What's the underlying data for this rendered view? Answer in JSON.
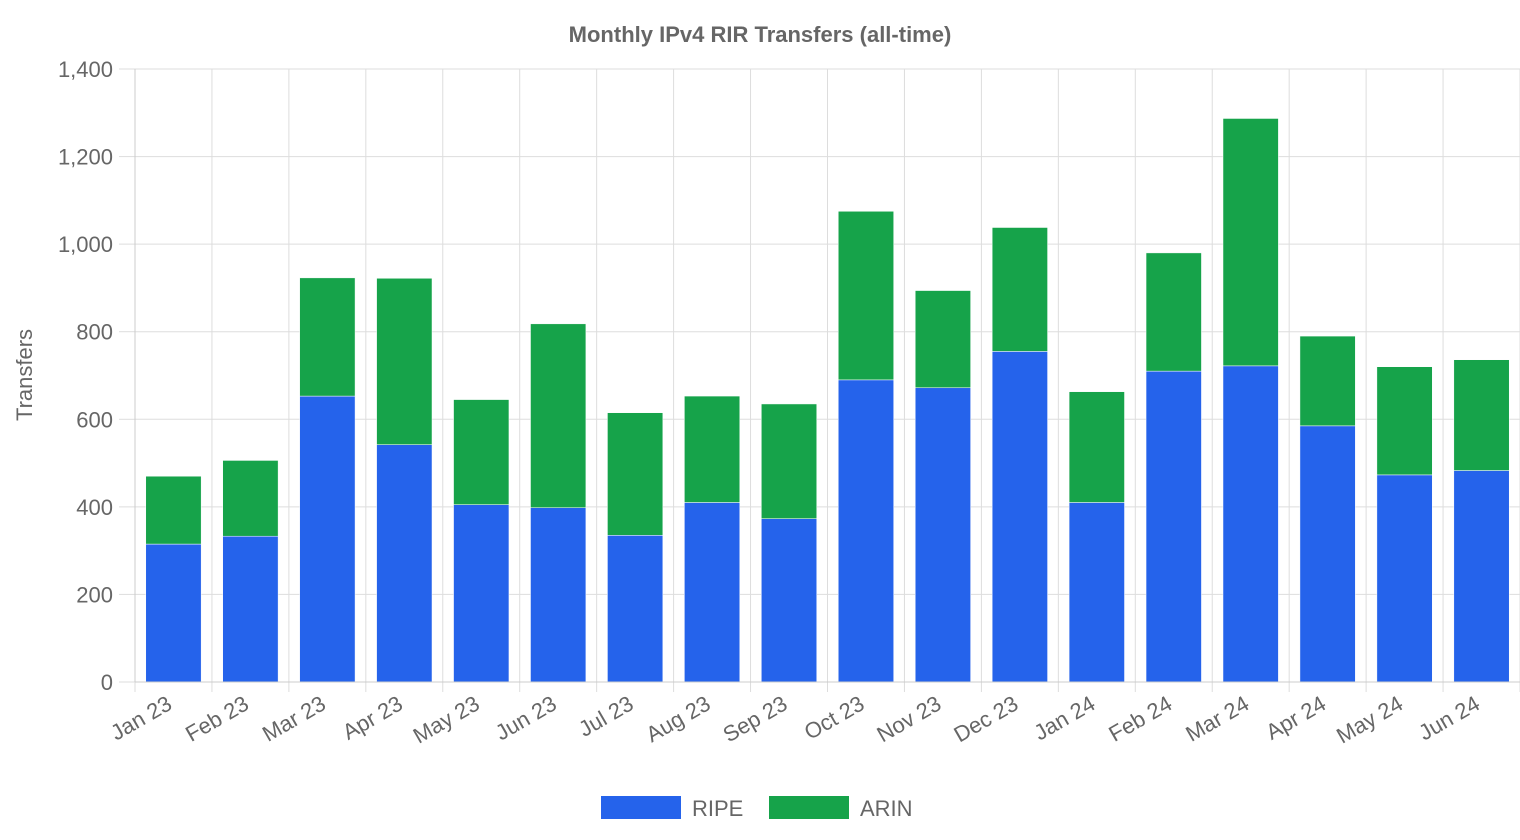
{
  "chart_data": {
    "type": "bar",
    "stacked": true,
    "title": "Monthly IPv4 RIR Transfers (all-time)",
    "xlabel": "",
    "ylabel": "Transfers",
    "ylim": [
      0,
      1400
    ],
    "yticks": [
      0,
      200,
      400,
      600,
      800,
      1000,
      1200,
      1400
    ],
    "ytick_labels": [
      "0",
      "200",
      "400",
      "600",
      "800",
      "1,000",
      "1,200",
      "1,400"
    ],
    "grid": true,
    "legend_position": "bottom",
    "categories": [
      "Jan 23",
      "Feb 23",
      "Mar 23",
      "Apr 23",
      "May 23",
      "Jun 23",
      "Jul 23",
      "Aug 23",
      "Sep 23",
      "Oct 23",
      "Nov 23",
      "Dec 23",
      "Jan 24",
      "Feb 24",
      "Mar 24",
      "Apr 24",
      "May 24",
      "Jun 24"
    ],
    "series": [
      {
        "name": "RIPE",
        "color": "#2563eb",
        "values": [
          315,
          333,
          653,
          542,
          405,
          398,
          335,
          410,
          373,
          690,
          672,
          755,
          410,
          710,
          722,
          585,
          473,
          483
        ]
      },
      {
        "name": "ARIN",
        "color": "#16a34a",
        "values": [
          155,
          173,
          270,
          380,
          240,
          420,
          280,
          243,
          262,
          385,
          222,
          283,
          253,
          270,
          565,
          205,
          247,
          253
        ]
      }
    ]
  }
}
